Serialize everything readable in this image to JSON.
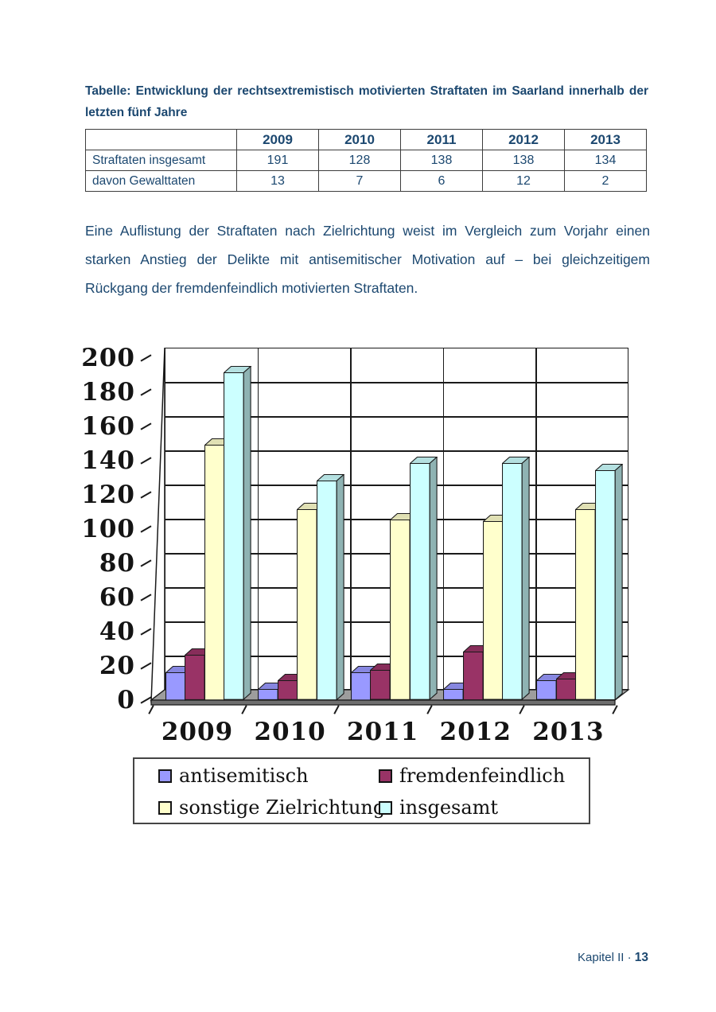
{
  "heading": "Tabelle: Entwicklung der rechtsextremistisch motivierten Straftaten im Saarland innerhalb der letzten fünf Jahre",
  "table": {
    "columns": [
      "",
      "2009",
      "2010",
      "2011",
      "2012",
      "2013"
    ],
    "rows": [
      {
        "label": "Straftaten insgesamt",
        "values": [
          "191",
          "128",
          "138",
          "138",
          "134"
        ]
      },
      {
        "label": "davon Gewalttaten",
        "values": [
          "13",
          "7",
          "6",
          "12",
          "2"
        ]
      }
    ]
  },
  "paragraph": "Eine Auflistung der Straftaten nach Zielrichtung weist im Vergleich zum Vorjahr einen starken Anstieg der Delikte mit antisemitischer Motivation auf – bei gleichzeitigem Rückgang der fremdenfeindlich motivierten Straftaten.",
  "chart_data": {
    "type": "bar",
    "style": "3d-column",
    "title": "",
    "xlabel": "",
    "ylabel": "",
    "categories": [
      "2009",
      "2010",
      "2011",
      "2012",
      "2013"
    ],
    "series": [
      {
        "name": "antisemitisch",
        "color": "#9999ff",
        "values": [
          16,
          6,
          16,
          6,
          11
        ]
      },
      {
        "name": "fremdenfeindlich",
        "color": "#993366",
        "values": [
          26,
          11,
          17,
          28,
          12
        ]
      },
      {
        "name": "sonstige Zielrichtung",
        "color": "#ffffcc",
        "values": [
          149,
          111,
          105,
          104,
          111
        ]
      },
      {
        "name": "insgesamt",
        "color": "#ccffff",
        "values": [
          191,
          128,
          138,
          138,
          134
        ]
      }
    ],
    "ylim": [
      0,
      200
    ],
    "ytick_step": 20,
    "grid": true,
    "legend_position": "bottom",
    "floor_color": "#9d9d9d",
    "floor_front_color": "#6e6e6e"
  },
  "footer": {
    "label": "Kapitel II",
    "separator": "·",
    "page": "13"
  },
  "colors": {
    "text_blue": "#1c4870",
    "axis_black": "#141414"
  }
}
